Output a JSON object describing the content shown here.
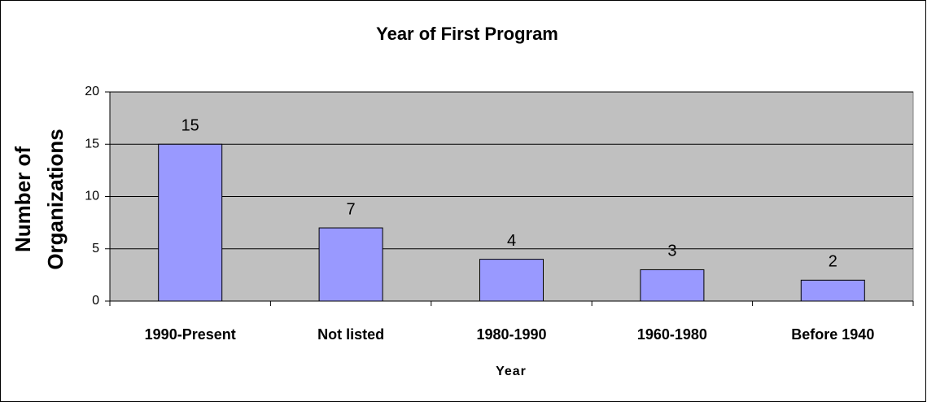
{
  "chart_data": {
    "type": "bar",
    "title": "Year of First Program",
    "xlabel": "Year",
    "ylabel": [
      "Number of",
      "Organizations"
    ],
    "categories": [
      "1990-Present",
      "Not listed",
      "1980-1990",
      "1960-1980",
      "Before 1940"
    ],
    "values": [
      15,
      7,
      4,
      3,
      2
    ],
    "color": "#9999ff",
    "ylim": [
      0,
      20
    ],
    "yticks": [
      0,
      5,
      10,
      15,
      20
    ],
    "grid": true
  }
}
